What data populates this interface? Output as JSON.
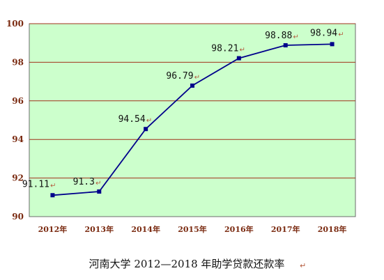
{
  "chart_data": {
    "type": "line",
    "title": "河南大学 2012—2018 年助学贷款还款率",
    "categories": [
      "2012年",
      "2013年",
      "2014年",
      "2015年",
      "2016年",
      "2017年",
      "2018年"
    ],
    "series": [
      {
        "values": [
          91.11,
          91.3,
          94.54,
          96.79,
          98.21,
          98.88,
          98.94
        ],
        "labels": [
          "91.11",
          "91.3",
          "94.54",
          "96.79",
          "98.21",
          "98.88",
          "98.94"
        ]
      }
    ],
    "ylim": [
      90,
      100
    ],
    "yticks": [
      90,
      92,
      94,
      96,
      98,
      100
    ],
    "grid": true,
    "legend": "none",
    "xlabel": "",
    "ylabel": "",
    "colors": {
      "plot_background": "#ccffcc",
      "gridline": "#a0301a",
      "series_line": "#00008b",
      "tick_text": "#7a2a10",
      "para_mark": "#b45a3c"
    }
  }
}
